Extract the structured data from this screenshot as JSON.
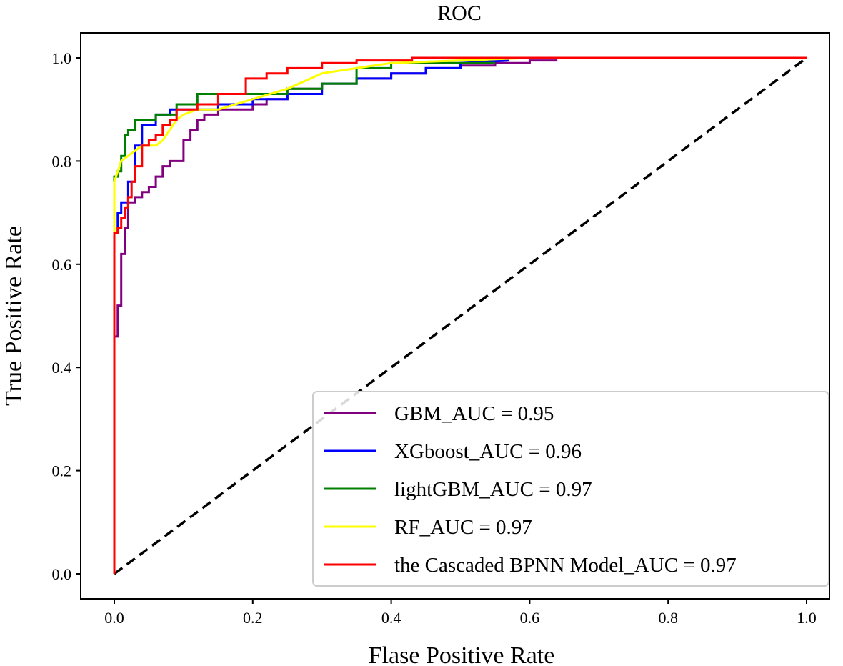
{
  "chart_data": {
    "type": "line",
    "title": "ROC",
    "xlabel": "Flase Positive Rate",
    "ylabel": "True Positive Rate",
    "xlim": [
      -0.05,
      1.05
    ],
    "ylim": [
      -0.05,
      1.05
    ],
    "xticks": [
      0.0,
      0.2,
      0.4,
      0.6,
      0.8,
      1.0
    ],
    "yticks": [
      0.0,
      0.2,
      0.4,
      0.6,
      0.8,
      1.0
    ],
    "xtick_labels": [
      "0.0",
      "0.2",
      "0.4",
      "0.6",
      "0.8",
      "1.0"
    ],
    "ytick_labels": [
      "0.0",
      "0.2",
      "0.4",
      "0.6",
      "0.8",
      "1.0"
    ],
    "grid": false,
    "legend_position": "lower-right",
    "series": [
      {
        "name": "GBM_AUC = 0.95",
        "color": "#800080",
        "x": [
          0.0,
          0.0,
          0.005,
          0.005,
          0.01,
          0.01,
          0.015,
          0.015,
          0.02,
          0.02,
          0.03,
          0.03,
          0.04,
          0.04,
          0.05,
          0.05,
          0.06,
          0.06,
          0.07,
          0.07,
          0.08,
          0.08,
          0.1,
          0.1,
          0.11,
          0.11,
          0.12,
          0.12,
          0.13,
          0.13,
          0.15,
          0.15,
          0.2,
          0.2,
          0.22,
          0.22,
          0.25,
          0.25,
          0.3,
          0.3,
          0.35,
          0.35,
          0.4,
          0.4,
          0.45,
          0.45,
          0.5,
          0.5,
          0.55,
          0.55,
          0.6,
          0.6,
          0.64
        ],
        "y": [
          0.0,
          0.46,
          0.46,
          0.52,
          0.52,
          0.62,
          0.62,
          0.67,
          0.67,
          0.72,
          0.72,
          0.73,
          0.73,
          0.74,
          0.74,
          0.75,
          0.75,
          0.77,
          0.77,
          0.79,
          0.79,
          0.8,
          0.8,
          0.84,
          0.84,
          0.86,
          0.86,
          0.88,
          0.88,
          0.89,
          0.89,
          0.9,
          0.9,
          0.91,
          0.91,
          0.92,
          0.92,
          0.94,
          0.94,
          0.95,
          0.95,
          0.96,
          0.96,
          0.97,
          0.97,
          0.98,
          0.98,
          0.985,
          0.985,
          0.99,
          0.99,
          0.995,
          0.995
        ]
      },
      {
        "name": "XGboost_AUC = 0.96",
        "color": "#0000ff",
        "x": [
          0.0,
          0.0,
          0.005,
          0.005,
          0.01,
          0.01,
          0.02,
          0.02,
          0.03,
          0.03,
          0.04,
          0.04,
          0.06,
          0.06,
          0.08,
          0.08,
          0.1,
          0.1,
          0.15,
          0.15,
          0.2,
          0.2,
          0.25,
          0.25,
          0.3,
          0.3,
          0.35,
          0.35,
          0.4,
          0.4,
          0.45,
          0.45,
          0.5,
          0.5,
          0.57
        ],
        "y": [
          0.0,
          0.66,
          0.66,
          0.7,
          0.7,
          0.72,
          0.72,
          0.76,
          0.76,
          0.83,
          0.83,
          0.87,
          0.87,
          0.89,
          0.89,
          0.9,
          0.9,
          0.9,
          0.9,
          0.91,
          0.91,
          0.92,
          0.92,
          0.93,
          0.93,
          0.95,
          0.95,
          0.96,
          0.96,
          0.97,
          0.97,
          0.98,
          0.98,
          0.99,
          0.995
        ]
      },
      {
        "name": "lightGBM_AUC = 0.97",
        "color": "#008000",
        "x": [
          0.0,
          0.0,
          0.005,
          0.005,
          0.01,
          0.01,
          0.015,
          0.015,
          0.02,
          0.02,
          0.03,
          0.03,
          0.06,
          0.06,
          0.09,
          0.09,
          0.12,
          0.12,
          0.2,
          0.2,
          0.25,
          0.25,
          0.3,
          0.3,
          0.35,
          0.35,
          0.4,
          0.4,
          0.5,
          0.5,
          0.55
        ],
        "y": [
          0.0,
          0.77,
          0.77,
          0.78,
          0.78,
          0.81,
          0.81,
          0.85,
          0.85,
          0.86,
          0.86,
          0.88,
          0.88,
          0.89,
          0.89,
          0.91,
          0.91,
          0.93,
          0.93,
          0.93,
          0.93,
          0.94,
          0.94,
          0.95,
          0.95,
          0.98,
          0.98,
          0.99,
          0.99,
          0.99,
          0.99
        ]
      },
      {
        "name": "RF_AUC = 0.97",
        "color": "#ffff00",
        "x": [
          0.0,
          0.0,
          0.005,
          0.01,
          0.02,
          0.03,
          0.04,
          0.06,
          0.07,
          0.08,
          0.09,
          0.1,
          0.12,
          0.15,
          0.2,
          0.25,
          0.3,
          0.35,
          0.4,
          0.5,
          0.6,
          0.7,
          1.0
        ],
        "y": [
          0.0,
          0.76,
          0.78,
          0.8,
          0.81,
          0.82,
          0.83,
          0.83,
          0.84,
          0.86,
          0.88,
          0.89,
          0.9,
          0.9,
          0.92,
          0.94,
          0.97,
          0.98,
          0.99,
          0.995,
          1.0,
          1.0,
          1.0
        ]
      },
      {
        "name": "the Cascaded BPNN Model_AUC = 0.97",
        "color": "#ff0000",
        "x": [
          0.0,
          0.0,
          0.005,
          0.005,
          0.01,
          0.01,
          0.015,
          0.015,
          0.02,
          0.02,
          0.025,
          0.025,
          0.03,
          0.03,
          0.04,
          0.04,
          0.05,
          0.05,
          0.06,
          0.06,
          0.07,
          0.07,
          0.08,
          0.08,
          0.09,
          0.09,
          0.12,
          0.12,
          0.15,
          0.15,
          0.19,
          0.19,
          0.22,
          0.22,
          0.25,
          0.25,
          0.3,
          0.3,
          0.35,
          0.35,
          0.43,
          0.43,
          1.0
        ],
        "y": [
          0.0,
          0.66,
          0.66,
          0.67,
          0.67,
          0.69,
          0.69,
          0.71,
          0.71,
          0.73,
          0.73,
          0.76,
          0.76,
          0.79,
          0.79,
          0.83,
          0.83,
          0.84,
          0.84,
          0.85,
          0.85,
          0.87,
          0.87,
          0.88,
          0.88,
          0.9,
          0.9,
          0.91,
          0.91,
          0.93,
          0.93,
          0.96,
          0.96,
          0.97,
          0.97,
          0.98,
          0.98,
          0.99,
          0.99,
          0.995,
          0.995,
          1.0,
          1.0
        ]
      }
    ],
    "reference_line": {
      "x": [
        0.0,
        1.0
      ],
      "y": [
        0.0,
        1.0
      ],
      "color": "#000000",
      "style": "dashed"
    }
  }
}
